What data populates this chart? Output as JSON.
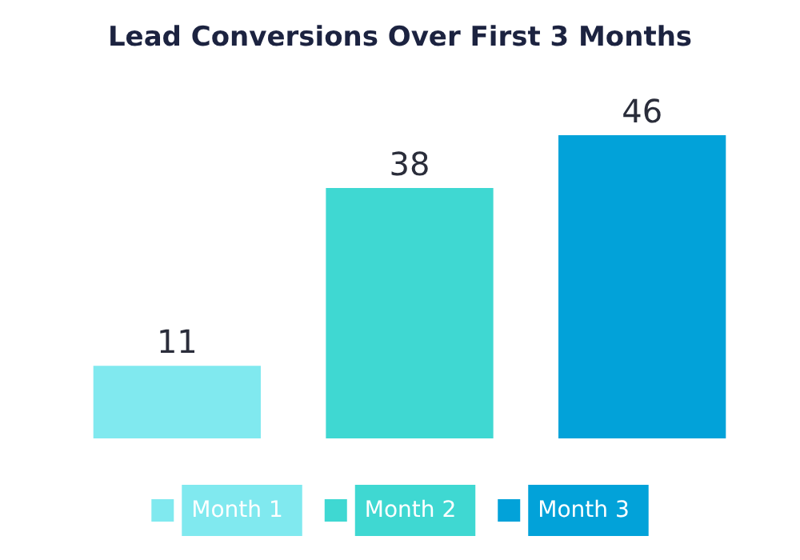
{
  "chart_data": {
    "type": "bar",
    "title": "Lead Conversions Over First 3 Months",
    "categories": [
      null,
      null,
      null
    ],
    "series": [
      {
        "name": "Month 1",
        "color": "#80e9ef",
        "values": [
          11,
          null,
          null
        ]
      },
      {
        "name": "Month 2",
        "color": "#3fd8d2",
        "values": [
          null,
          38,
          null
        ]
      },
      {
        "name": "Month 3",
        "color": "#02a2d9",
        "values": [
          null,
          null,
          46
        ]
      }
    ],
    "stacked": true,
    "data_labels": true,
    "legend": "bottom",
    "grid": false
  }
}
